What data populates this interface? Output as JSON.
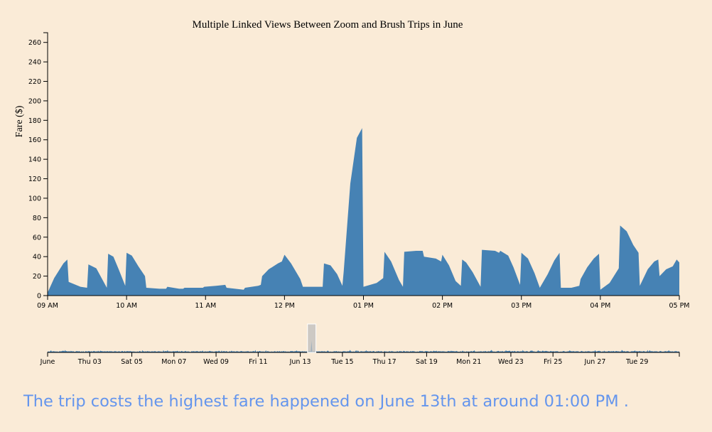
{
  "colors": {
    "background": "#faebd7",
    "area_fill": "#4682b4",
    "caption_text": "#6495ed",
    "brush_fill": "#bdbdbd"
  },
  "chart_data": [
    {
      "type": "area",
      "title": "Multiple Linked Views Between Zoom and Brush Trips in June",
      "xlabel": "",
      "ylabel": "Fare ($)",
      "ylim": [
        0,
        270
      ],
      "y_ticks": [
        0,
        20,
        40,
        60,
        80,
        100,
        120,
        140,
        160,
        180,
        200,
        220,
        240,
        260
      ],
      "x_range": [
        "09:00",
        "17:00"
      ],
      "x_ticks": [
        "09 AM",
        "10 AM",
        "11 AM",
        "12 PM",
        "01 PM",
        "02 PM",
        "03 PM",
        "04 PM",
        "05 PM"
      ],
      "x_tick_values": [
        "09:00",
        "10:00",
        "11:00",
        "12:00",
        "13:00",
        "14:00",
        "15:00",
        "16:00",
        "17:00"
      ],
      "series": [
        {
          "points": [
            [
              "09:00",
              3
            ],
            [
              "09:05",
              18
            ],
            [
              "09:12",
              33
            ],
            [
              "09:15",
              37
            ],
            [
              "09:16",
              14
            ],
            [
              "09:25",
              9
            ],
            [
              "09:30",
              8
            ],
            [
              "09:31",
              32
            ],
            [
              "09:37",
              28
            ],
            [
              "09:45",
              8
            ],
            [
              "09:46",
              43
            ],
            [
              "09:50",
              40
            ],
            [
              "09:54",
              27
            ],
            [
              "09:59",
              10
            ],
            [
              "10:00",
              44
            ],
            [
              "10:04",
              41
            ],
            [
              "10:09",
              30
            ],
            [
              "10:14",
              20
            ],
            [
              "10:15",
              8
            ],
            [
              "10:25",
              7
            ],
            [
              "10:30",
              7
            ],
            [
              "10:31",
              9
            ],
            [
              "10:40",
              7
            ],
            [
              "10:43",
              7
            ],
            [
              "10:44",
              8
            ],
            [
              "10:55",
              8
            ],
            [
              "10:58",
              8
            ],
            [
              "10:59",
              9
            ],
            [
              "11:08",
              10
            ],
            [
              "11:15",
              11
            ],
            [
              "11:16",
              8
            ],
            [
              "11:29",
              6
            ],
            [
              "11:30",
              8
            ],
            [
              "11:40",
              10
            ],
            [
              "11:42",
              11
            ],
            [
              "11:43",
              20
            ],
            [
              "11:48",
              27
            ],
            [
              "11:55",
              33
            ],
            [
              "11:58",
              35
            ],
            [
              "12:00",
              42
            ],
            [
              "12:05",
              33
            ],
            [
              "12:12",
              17
            ],
            [
              "12:14",
              9
            ],
            [
              "12:25",
              9
            ],
            [
              "12:29",
              9
            ],
            [
              "12:30",
              33
            ],
            [
              "12:35",
              31
            ],
            [
              "12:40",
              22
            ],
            [
              "12:44",
              10
            ],
            [
              "12:45",
              25
            ],
            [
              "12:50",
              115
            ],
            [
              "12:55",
              162
            ],
            [
              "12:59",
              172
            ],
            [
              "13:00",
              9
            ],
            [
              "13:10",
              13
            ],
            [
              "13:15",
              18
            ],
            [
              "13:16",
              45
            ],
            [
              "13:21",
              35
            ],
            [
              "13:27",
              16
            ],
            [
              "13:30",
              9
            ],
            [
              "13:31",
              45
            ],
            [
              "13:40",
              46
            ],
            [
              "13:45",
              46
            ],
            [
              "13:46",
              40
            ],
            [
              "13:55",
              38
            ],
            [
              "13:59",
              35
            ],
            [
              "14:00",
              42
            ],
            [
              "14:05",
              31
            ],
            [
              "14:10",
              15
            ],
            [
              "14:14",
              10
            ],
            [
              "14:15",
              37
            ],
            [
              "14:18",
              34
            ],
            [
              "14:23",
              24
            ],
            [
              "14:29",
              9
            ],
            [
              "14:30",
              47
            ],
            [
              "14:40",
              46
            ],
            [
              "14:43",
              44
            ],
            [
              "14:44",
              46
            ],
            [
              "14:50",
              41
            ],
            [
              "14:54",
              29
            ],
            [
              "14:59",
              11
            ],
            [
              "15:00",
              44
            ],
            [
              "15:05",
              38
            ],
            [
              "15:10",
              23
            ],
            [
              "15:14",
              8
            ],
            [
              "15:20",
              22
            ],
            [
              "15:25",
              36
            ],
            [
              "15:29",
              44
            ],
            [
              "15:30",
              8
            ],
            [
              "15:38",
              8
            ],
            [
              "15:44",
              10
            ],
            [
              "15:45",
              17
            ],
            [
              "15:50",
              29
            ],
            [
              "15:55",
              38
            ],
            [
              "15:59",
              43
            ],
            [
              "16:00",
              6
            ],
            [
              "16:07",
              13
            ],
            [
              "16:14",
              28
            ],
            [
              "16:15",
              72
            ],
            [
              "16:20",
              66
            ],
            [
              "16:25",
              52
            ],
            [
              "16:29",
              44
            ],
            [
              "16:30",
              10
            ],
            [
              "16:36",
              27
            ],
            [
              "16:41",
              35
            ],
            [
              "16:44",
              37
            ],
            [
              "16:45",
              20
            ],
            [
              "16:50",
              27
            ],
            [
              "16:55",
              30
            ],
            [
              "16:58",
              37
            ],
            [
              "17:00",
              34
            ]
          ]
        }
      ]
    },
    {
      "type": "area",
      "title": "",
      "xlabel": "",
      "ylabel": "",
      "x_range": [
        "2021-06-01",
        "2021-07-01"
      ],
      "x_ticks": [
        "June",
        "Thu 03",
        "Sat 05",
        "Mon 07",
        "Wed 09",
        "Fri 11",
        "Jun 13",
        "Tue 15",
        "Thu 17",
        "Sat 19",
        "Mon 21",
        "Wed 23",
        "Fri 25",
        "Jun 27",
        "Tue 29"
      ],
      "x_tick_values": [
        "2021-06-01",
        "2021-06-03",
        "2021-06-05",
        "2021-06-07",
        "2021-06-09",
        "2021-06-11",
        "2021-06-13",
        "2021-06-15",
        "2021-06-17",
        "2021-06-19",
        "2021-06-21",
        "2021-06-23",
        "2021-06-25",
        "2021-06-27",
        "2021-06-29"
      ],
      "brush_selection": [
        "2021-06-13T09:00",
        "2021-06-13T17:00"
      ],
      "series": [
        {
          "baseline_fare": 8,
          "peak_fare": 172,
          "peak_time": "2021-06-13T13:00"
        }
      ]
    }
  ],
  "caption": {
    "text": "The trip costs the highest fare happened on June 13th at around 01:00 PM ."
  }
}
